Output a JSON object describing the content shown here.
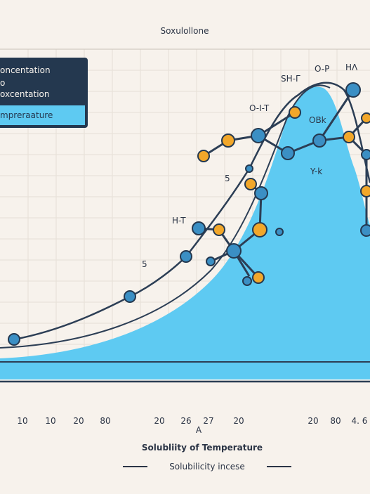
{
  "header": {
    "title": "Soxulollone"
  },
  "legend": {
    "items": [
      "oncentation",
      "o",
      "oxcentation",
      "mpreraature"
    ]
  },
  "x_axis": {
    "labels": [
      "10",
      "10",
      "20",
      "80",
      "20",
      "26",
      "27",
      "20",
      "20",
      "80",
      "4. 6"
    ]
  },
  "annotations": [
    "SH-Γ",
    "O-P",
    "HΛ",
    "O-I-T",
    "OBk",
    "Y-k",
    "H-T",
    "5",
    "5"
  ],
  "footer": {
    "letter": "A",
    "title": "Solubliity of Temperature",
    "subtitle": "Solubilicity incese"
  }
}
